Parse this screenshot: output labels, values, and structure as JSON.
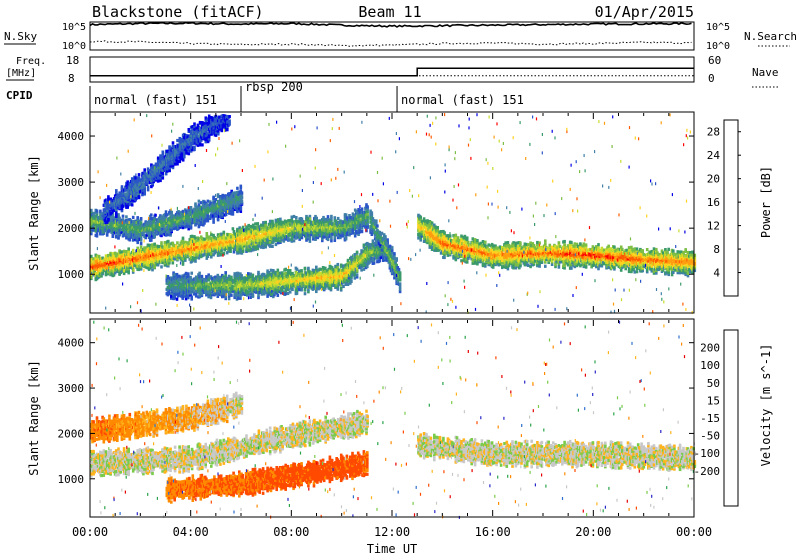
{
  "header": {
    "station": "Blackstone (fitACF)",
    "beam": "Beam 11",
    "date": "01/Apr/2015"
  },
  "labels": {
    "nsky": "N.Sky",
    "nsearch": "N.Search",
    "freq_line1": "Freq.",
    "freq_line2": "[MHz]",
    "nave": "Nave",
    "cpid": "CPID",
    "noise_tick_top": "10^5",
    "noise_tick_bottom": "10^0",
    "freq_tick_high": "18",
    "freq_tick_low": "8",
    "nave_tick_high": "60",
    "nave_tick_low": "0",
    "xlabel": "Time UT"
  },
  "colors": {
    "power": [
      "#0000e6",
      "#2a55c8",
      "#3f7fa8",
      "#3a9a6a",
      "#7cbd45",
      "#c8dc2e",
      "#ffd21f",
      "#ff9d10",
      "#ff5a00",
      "#ff0000"
    ],
    "velocity": [
      "#2828c8",
      "#2f6fcf",
      "#2aa34a",
      "#7acb4a",
      "#c8c8c8",
      "#c8c8c8",
      "#ffb41e",
      "#ff8a00",
      "#ff4a00",
      "#e60000"
    ]
  },
  "chart_data": [
    {
      "type": "line",
      "panel": "noise",
      "series": [
        {
          "name": "N.Sky",
          "style": "solid",
          "points": [
            [
              0,
              4.7
            ],
            [
              2,
              4.9
            ],
            [
              4,
              4.95
            ],
            [
              6,
              4.8
            ],
            [
              8,
              4.9
            ],
            [
              10,
              4.6
            ],
            [
              12,
              4.4
            ],
            [
              14,
              4.5
            ],
            [
              16,
              4.6
            ],
            [
              18,
              4.7
            ],
            [
              20,
              4.8
            ],
            [
              22,
              4.85
            ],
            [
              24,
              4.9
            ]
          ]
        },
        {
          "name": "N.Search",
          "style": "dotted",
          "points": [
            [
              0,
              1.6
            ],
            [
              2,
              1.5
            ],
            [
              4,
              1.2
            ],
            [
              6,
              1.0
            ],
            [
              8,
              1.1
            ],
            [
              10,
              0.8
            ],
            [
              12,
              0.9
            ],
            [
              14,
              1.2
            ],
            [
              16,
              1.3
            ],
            [
              18,
              1.1
            ],
            [
              20,
              1.2
            ],
            [
              22,
              1.4
            ],
            [
              24,
              1.3
            ]
          ]
        }
      ],
      "xlim": [
        0,
        24
      ]
    },
    {
      "type": "line",
      "panel": "frequency",
      "series": [
        {
          "name": "Freq.",
          "style": "solid",
          "points": [
            [
              0,
              10.5
            ],
            [
              13,
              10.5
            ],
            [
              13,
              13.5
            ],
            [
              24,
              13.5
            ]
          ]
        },
        {
          "name": "Nave",
          "style": "dotted",
          "points": [
            [
              0,
              15
            ],
            [
              24,
              15
            ]
          ]
        }
      ],
      "ylim_freq": [
        8,
        18
      ],
      "ylim_nave": [
        0,
        60
      ]
    },
    {
      "type": "table",
      "panel": "cpid",
      "segments": [
        {
          "label": "normal (fast) 151",
          "start": 0,
          "end": 6
        },
        {
          "label": "rbsp 200",
          "start": 6,
          "end": 12.2
        },
        {
          "label": "normal (fast) 151",
          "start": 12.2,
          "end": 24
        }
      ]
    },
    {
      "type": "heatmap",
      "panel": "power",
      "title": "Beam 11",
      "ylabel": "Slant Range [km]",
      "xlabel": "Time UT",
      "xlim": [
        0,
        24
      ],
      "ylim": [
        180,
        4500
      ],
      "x_ticks": [
        "00:00",
        "04:00",
        "08:00",
        "12:00",
        "16:00",
        "20:00",
        "00:00"
      ],
      "y_ticks": [
        1000,
        2000,
        3000,
        4000
      ],
      "colorbar": {
        "label": "Power [dB]",
        "ticks": [
          4,
          8,
          12,
          16,
          20,
          24,
          28
        ],
        "range": [
          0,
          30
        ]
      },
      "features": [
        {
          "name": "main band",
          "points": [
            [
              0,
              1200,
              28
            ],
            [
              2,
              1400,
              26
            ],
            [
              4,
              1600,
              24
            ],
            [
              6,
              1800,
              22
            ],
            [
              8,
              2050,
              18
            ],
            [
              10,
              2050,
              14
            ],
            [
              11,
              2300,
              12
            ]
          ]
        },
        {
          "name": "upper band",
          "points": [
            [
              0,
              2200,
              14
            ],
            [
              2,
              2000,
              12
            ],
            [
              4,
              2300,
              12
            ],
            [
              6,
              2700,
              10
            ]
          ]
        },
        {
          "name": "high arc",
          "points": [
            [
              0.5,
              2400,
              6
            ],
            [
              2,
              3000,
              8
            ],
            [
              4,
              4000,
              6
            ],
            [
              5.5,
              4500,
              4
            ]
          ]
        },
        {
          "name": "lower arc",
          "points": [
            [
              3,
              800,
              10
            ],
            [
              6,
              800,
              16
            ],
            [
              8,
              900,
              20
            ],
            [
              10,
              1000,
              22
            ],
            [
              11,
              1500,
              16
            ],
            [
              11.8,
              1600,
              10
            ]
          ]
        },
        {
          "name": "post-noon",
          "points": [
            [
              11.1,
              2200,
              12
            ],
            [
              12,
              1300,
              14
            ],
            [
              12.3,
              900,
              12
            ]
          ]
        },
        {
          "name": "afternoon band",
          "points": [
            [
              13,
              2100,
              20
            ],
            [
              14,
              1700,
              26
            ],
            [
              16,
              1450,
              24
            ],
            [
              18,
              1500,
              26
            ],
            [
              20,
              1450,
              28
            ],
            [
              22,
              1350,
              26
            ],
            [
              24,
              1300,
              24
            ]
          ]
        }
      ]
    },
    {
      "type": "heatmap",
      "panel": "velocity",
      "ylabel": "Slant Range [km]",
      "xlabel": "Time UT",
      "xlim": [
        0,
        24
      ],
      "ylim": [
        180,
        4500
      ],
      "x_ticks": [
        "00:00",
        "04:00",
        "08:00",
        "12:00",
        "16:00",
        "20:00",
        "00:00"
      ],
      "y_ticks": [
        1000,
        2000,
        3000,
        4000
      ],
      "colorbar": {
        "label": "Velocity [m s^-1]",
        "ticks": [
          "200",
          "100",
          "50",
          "15",
          "-15",
          "-50",
          "-100",
          "-200"
        ],
        "range": [
          -250,
          250
        ]
      },
      "features": [
        {
          "name": "main band",
          "points": [
            [
              0,
              1400,
              0
            ],
            [
              4,
              1500,
              0
            ],
            [
              8,
              2000,
              0
            ],
            [
              11,
              2300,
              0
            ]
          ]
        },
        {
          "name": "upper band",
          "points": [
            [
              0,
              2100,
              -60
            ],
            [
              4,
              2400,
              -30
            ],
            [
              6,
              2700,
              0
            ]
          ]
        },
        {
          "name": "lower arc",
          "points": [
            [
              3,
              800,
              -60
            ],
            [
              6,
              950,
              -80
            ],
            [
              9,
              1200,
              -100
            ],
            [
              11,
              1400,
              -90
            ]
          ]
        },
        {
          "name": "afternoon band",
          "points": [
            [
              13,
              1800,
              0
            ],
            [
              16,
              1600,
              0
            ],
            [
              20,
              1600,
              0
            ],
            [
              24,
              1500,
              0
            ]
          ]
        }
      ]
    }
  ]
}
